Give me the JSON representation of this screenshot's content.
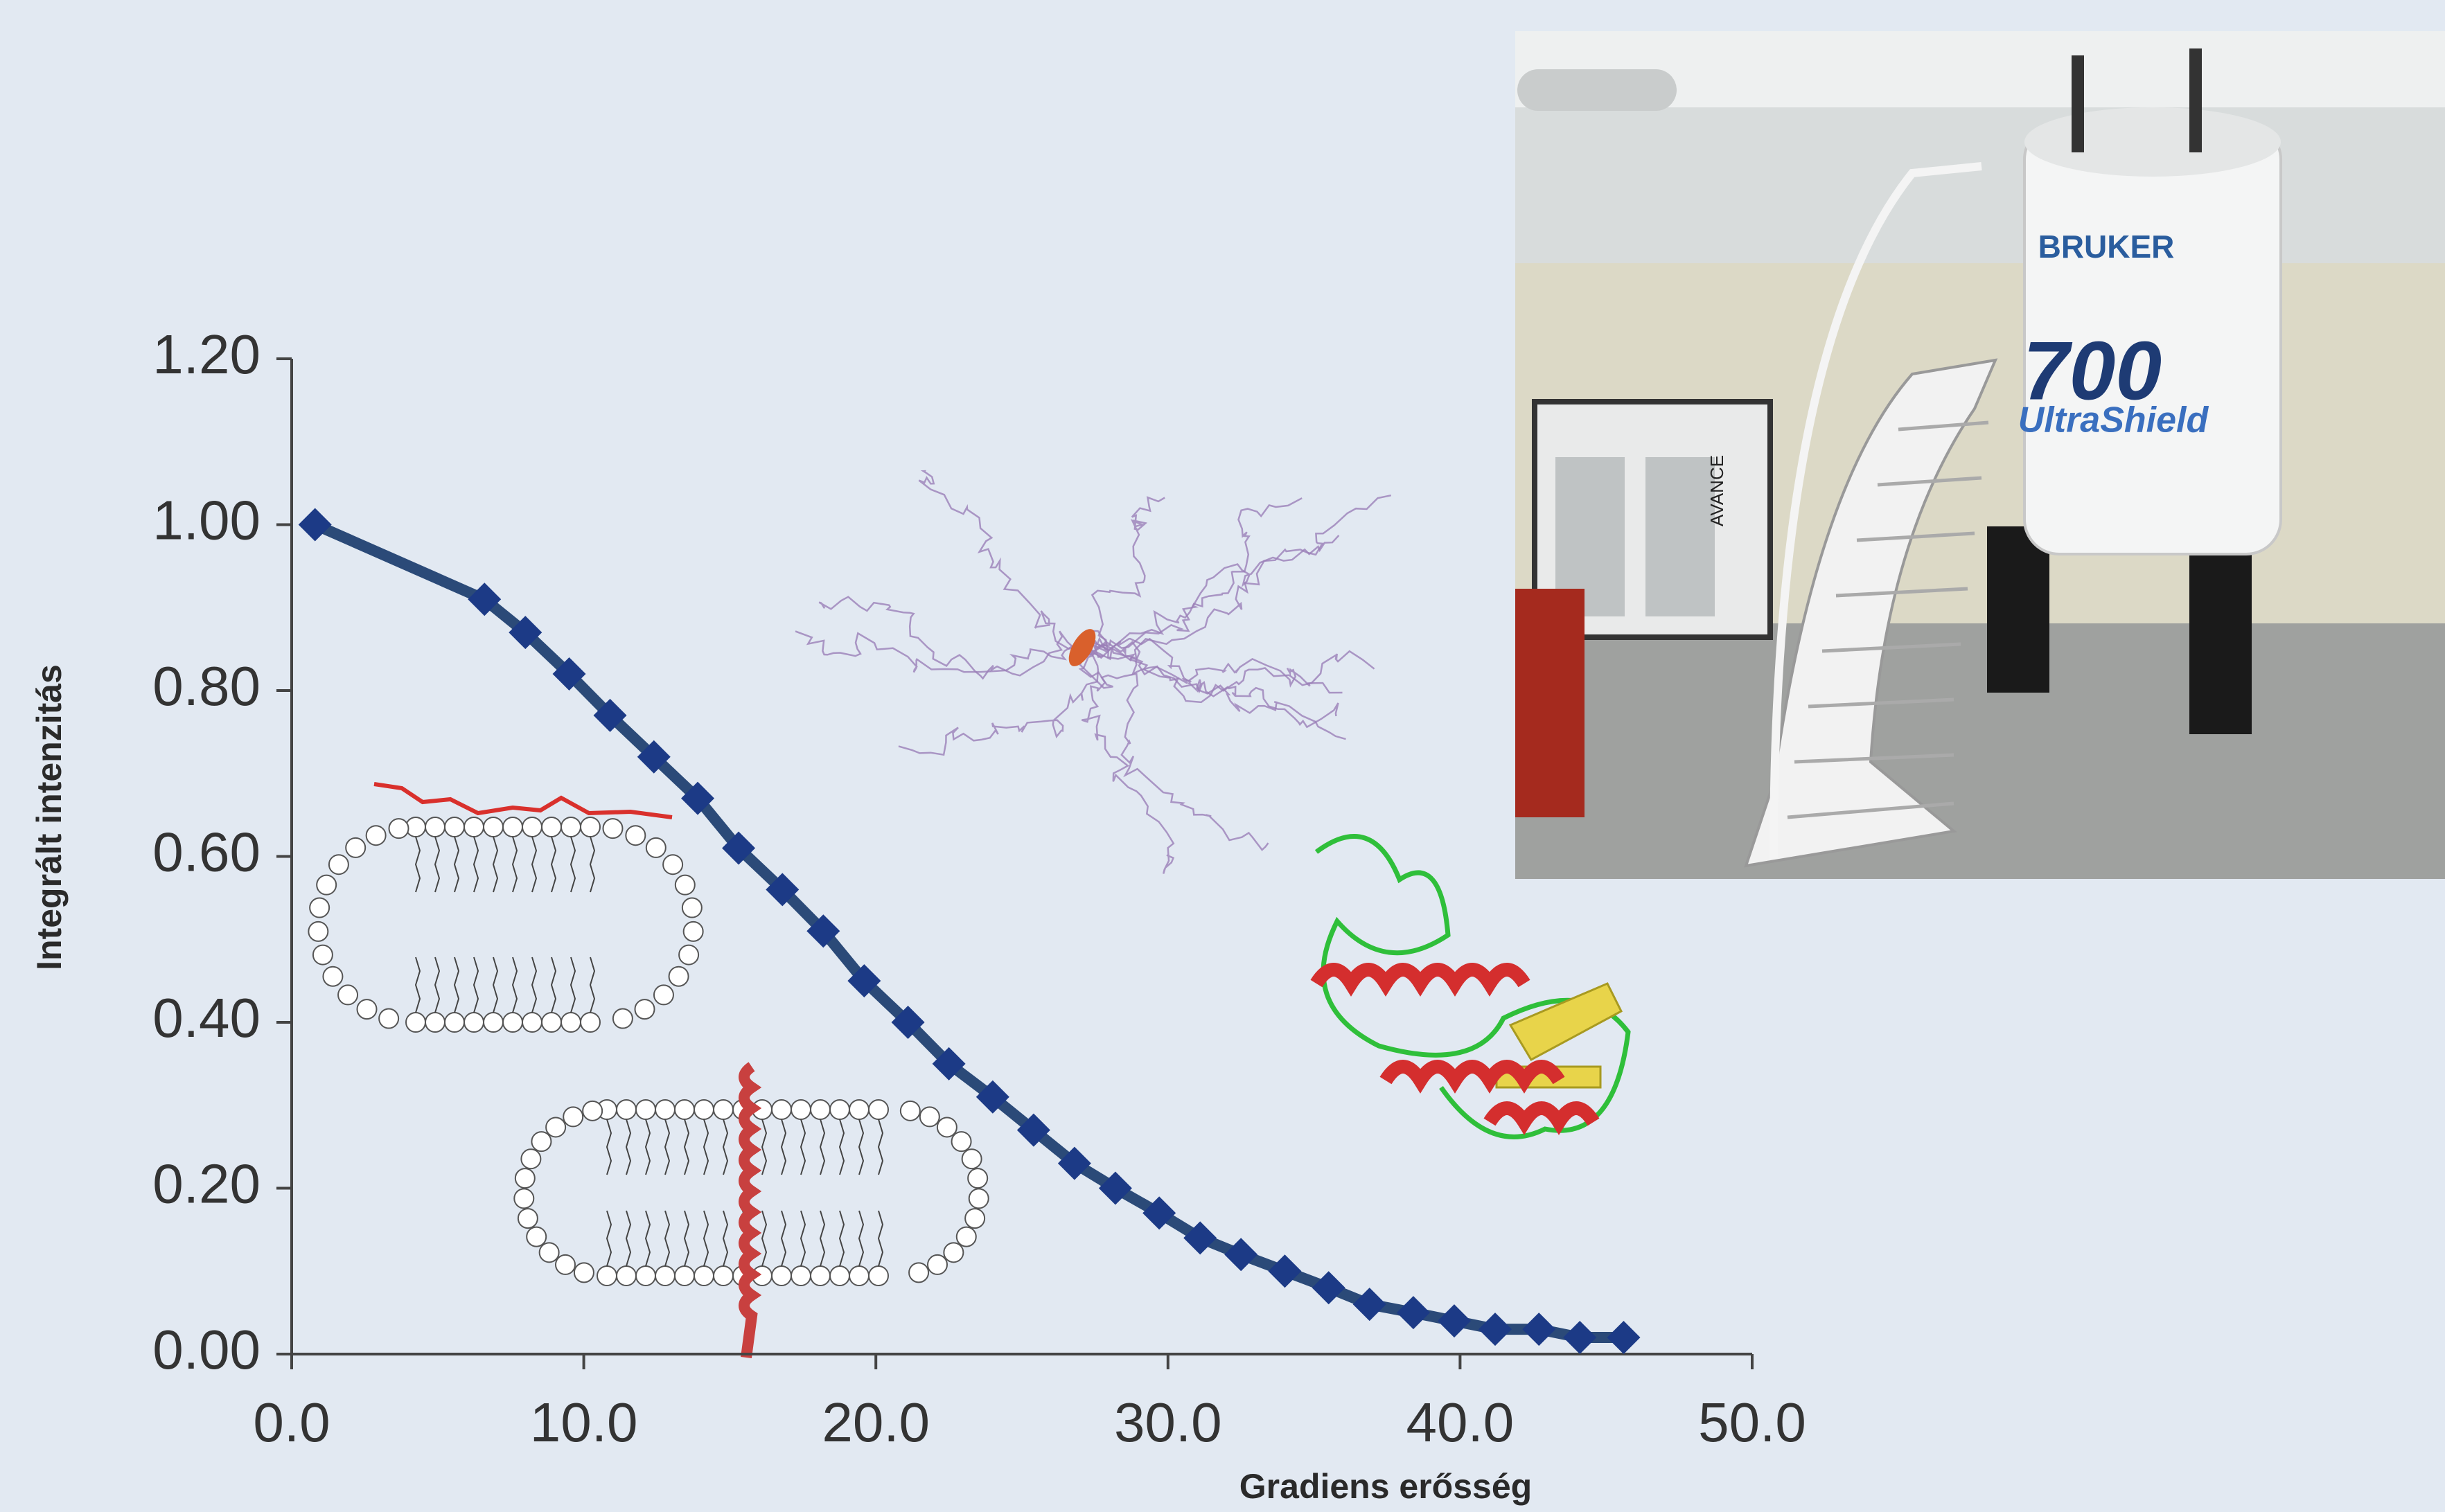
{
  "chart_data": {
    "type": "line",
    "x_label": "Gradiens erősség",
    "y_label": "Integrált intenzitás",
    "color": "#2b4a78",
    "marker_color": "#1c3a86",
    "x": [
      0.8,
      6.6,
      8.0,
      9.5,
      10.9,
      12.4,
      13.9,
      15.3,
      16.8,
      18.2,
      19.6,
      21.1,
      22.5,
      24.0,
      25.4,
      26.8,
      28.2,
      29.7,
      31.1,
      32.5,
      34.0,
      35.5,
      36.9,
      38.4,
      39.8,
      41.2,
      42.7,
      44.1,
      45.6
    ],
    "values": [
      1.0,
      0.91,
      0.87,
      0.82,
      0.77,
      0.72,
      0.67,
      0.61,
      0.56,
      0.51,
      0.45,
      0.4,
      0.35,
      0.31,
      0.27,
      0.23,
      0.2,
      0.17,
      0.14,
      0.12,
      0.1,
      0.08,
      0.06,
      0.05,
      0.04,
      0.03,
      0.03,
      0.02,
      0.02
    ],
    "xlim": [
      0,
      50
    ],
    "ylim": [
      0,
      1.2
    ],
    "xticks": [
      {
        "value": 0,
        "label": "0.0"
      },
      {
        "value": 10,
        "label": "10.0"
      },
      {
        "value": 20,
        "label": "20.0"
      },
      {
        "value": 30,
        "label": "30.0"
      },
      {
        "value": 40,
        "label": "40.0"
      },
      {
        "value": 50,
        "label": "50.0"
      }
    ],
    "yticks": [
      {
        "value": 0,
        "label": "0.00"
      },
      {
        "value": 0.2,
        "label": "0.20"
      },
      {
        "value": 0.4,
        "label": "0.40"
      },
      {
        "value": 0.6,
        "label": "0.60"
      },
      {
        "value": 0.8,
        "label": "0.80"
      },
      {
        "value": 1.0,
        "label": "1.00"
      },
      {
        "value": 1.2,
        "label": "1.20"
      }
    ],
    "grid": false
  },
  "photo": {
    "brand": "BRUKER",
    "model": "700",
    "line": "UltraShield",
    "console": "AVANCE"
  }
}
